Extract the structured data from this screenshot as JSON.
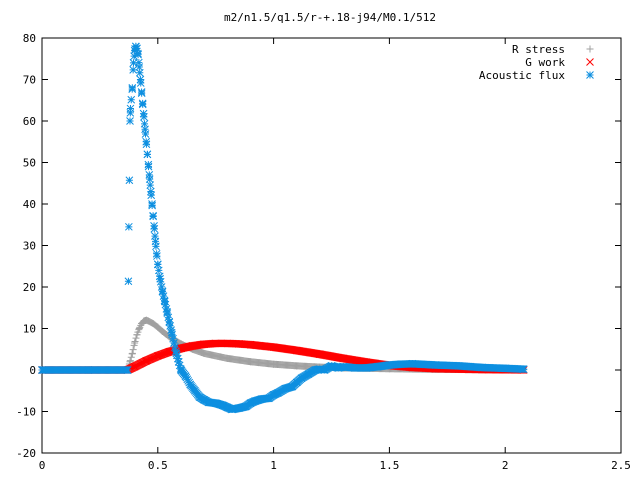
{
  "chart_data": {
    "type": "scatter",
    "title": "m2/n1.5/q1.5/r-+.18-j94/M0.1/512",
    "xlabel": "",
    "ylabel": "",
    "xlim": [
      0,
      2.5
    ],
    "ylim": [
      -20,
      80
    ],
    "xticks": [
      0,
      0.5,
      1,
      1.5,
      2,
      2.5
    ],
    "xtick_labels": [
      "0",
      "0.5",
      "1",
      "1.5",
      "2",
      "2.5"
    ],
    "yticks": [
      -20,
      -10,
      0,
      10,
      20,
      30,
      40,
      50,
      60,
      70,
      80
    ],
    "ytick_labels": [
      "-20",
      "-10",
      "0",
      "10",
      "20",
      "30",
      "40",
      "50",
      "60",
      "70",
      "80"
    ],
    "grid": false,
    "legend_position": "top-right",
    "series": [
      {
        "name": "R stress",
        "marker": "plus",
        "color": "#a0a0a0",
        "points": [
          [
            0,
            0
          ],
          [
            0.2,
            0
          ],
          [
            0.37,
            0
          ],
          [
            0.38,
            2
          ],
          [
            0.39,
            4
          ],
          [
            0.4,
            6.5
          ],
          [
            0.41,
            8.5
          ],
          [
            0.42,
            10
          ],
          [
            0.43,
            11.2
          ],
          [
            0.44,
            11.8
          ],
          [
            0.45,
            12
          ],
          [
            0.46,
            11.8
          ],
          [
            0.48,
            11.2
          ],
          [
            0.5,
            10.3
          ],
          [
            0.52,
            9.3
          ],
          [
            0.55,
            8
          ],
          [
            0.6,
            6.3
          ],
          [
            0.65,
            5
          ],
          [
            0.7,
            4
          ],
          [
            0.8,
            2.8
          ],
          [
            0.9,
            2
          ],
          [
            1.0,
            1.4
          ],
          [
            1.1,
            1
          ],
          [
            1.2,
            0.7
          ],
          [
            1.3,
            0.5
          ],
          [
            1.5,
            0.3
          ],
          [
            1.7,
            0.15
          ],
          [
            1.9,
            0.08
          ],
          [
            2.08,
            0.05
          ]
        ]
      },
      {
        "name": "G work",
        "marker": "cross",
        "color": "#ff0000",
        "points": [
          [
            0,
            0
          ],
          [
            0.2,
            0
          ],
          [
            0.37,
            0
          ],
          [
            0.4,
            0.8
          ],
          [
            0.45,
            2.2
          ],
          [
            0.5,
            3.4
          ],
          [
            0.55,
            4.4
          ],
          [
            0.6,
            5.2
          ],
          [
            0.65,
            5.8
          ],
          [
            0.7,
            6.2
          ],
          [
            0.75,
            6.4
          ],
          [
            0.8,
            6.4
          ],
          [
            0.85,
            6.3
          ],
          [
            0.9,
            6.1
          ],
          [
            1.0,
            5.5
          ],
          [
            1.1,
            4.7
          ],
          [
            1.2,
            3.8
          ],
          [
            1.3,
            2.8
          ],
          [
            1.4,
            1.9
          ],
          [
            1.5,
            1.1
          ],
          [
            1.6,
            0.6
          ],
          [
            1.7,
            0.3
          ],
          [
            1.8,
            0.2
          ],
          [
            1.9,
            0.1
          ],
          [
            2.0,
            0.05
          ],
          [
            2.08,
            0.03
          ]
        ]
      },
      {
        "name": "Acoustic flux",
        "marker": "star",
        "color": "#0d8fe0",
        "points": [
          [
            0,
            0
          ],
          [
            0.2,
            0
          ],
          [
            0.37,
            0
          ],
          [
            0.375,
            34.5
          ],
          [
            0.38,
            60
          ],
          [
            0.382,
            63
          ],
          [
            0.39,
            68
          ],
          [
            0.395,
            74
          ],
          [
            0.4,
            77
          ],
          [
            0.405,
            78
          ],
          [
            0.41,
            77.5
          ],
          [
            0.415,
            76
          ],
          [
            0.42,
            73
          ],
          [
            0.425,
            70
          ],
          [
            0.43,
            67
          ],
          [
            0.435,
            64
          ],
          [
            0.44,
            61
          ],
          [
            0.445,
            58
          ],
          [
            0.45,
            55
          ],
          [
            0.455,
            52
          ],
          [
            0.46,
            49
          ],
          [
            0.465,
            46
          ],
          [
            0.47,
            43
          ],
          [
            0.475,
            40
          ],
          [
            0.48,
            37
          ],
          [
            0.485,
            34
          ],
          [
            0.49,
            31
          ],
          [
            0.495,
            28
          ],
          [
            0.5,
            25.5
          ],
          [
            0.51,
            22
          ],
          [
            0.52,
            19
          ],
          [
            0.53,
            16.5
          ],
          [
            0.54,
            14
          ],
          [
            0.55,
            11.5
          ],
          [
            0.56,
            9
          ],
          [
            0.57,
            6.5
          ],
          [
            0.58,
            4
          ],
          [
            0.59,
            2
          ],
          [
            0.6,
            0
          ],
          [
            0.62,
            -1.5
          ],
          [
            0.64,
            -3.5
          ],
          [
            0.66,
            -5
          ],
          [
            0.68,
            -6.5
          ],
          [
            0.7,
            -7.2
          ],
          [
            0.72,
            -7.8
          ],
          [
            0.75,
            -8
          ],
          [
            0.78,
            -8.5
          ],
          [
            0.8,
            -9
          ],
          [
            0.82,
            -9.5
          ],
          [
            0.85,
            -9.2
          ],
          [
            0.88,
            -8.8
          ],
          [
            0.9,
            -8
          ],
          [
            0.92,
            -7.5
          ],
          [
            0.95,
            -7
          ],
          [
            0.98,
            -6.8
          ],
          [
            1.0,
            -6
          ],
          [
            1.02,
            -5.5
          ],
          [
            1.05,
            -4.5
          ],
          [
            1.08,
            -4
          ],
          [
            1.1,
            -3
          ],
          [
            1.12,
            -2
          ],
          [
            1.15,
            -1
          ],
          [
            1.18,
            0
          ],
          [
            1.2,
            0.2
          ],
          [
            1.22,
            0
          ],
          [
            1.25,
            1
          ],
          [
            1.28,
            0.5
          ],
          [
            1.3,
            0.8
          ],
          [
            1.35,
            0.5
          ],
          [
            1.4,
            0.5
          ],
          [
            1.45,
            0.8
          ],
          [
            1.5,
            1.2
          ],
          [
            1.55,
            1.4
          ],
          [
            1.6,
            1.5
          ],
          [
            1.7,
            1.2
          ],
          [
            1.8,
            1
          ],
          [
            1.9,
            0.6
          ],
          [
            2.0,
            0.4
          ],
          [
            2.08,
            0.2
          ]
        ]
      }
    ]
  }
}
